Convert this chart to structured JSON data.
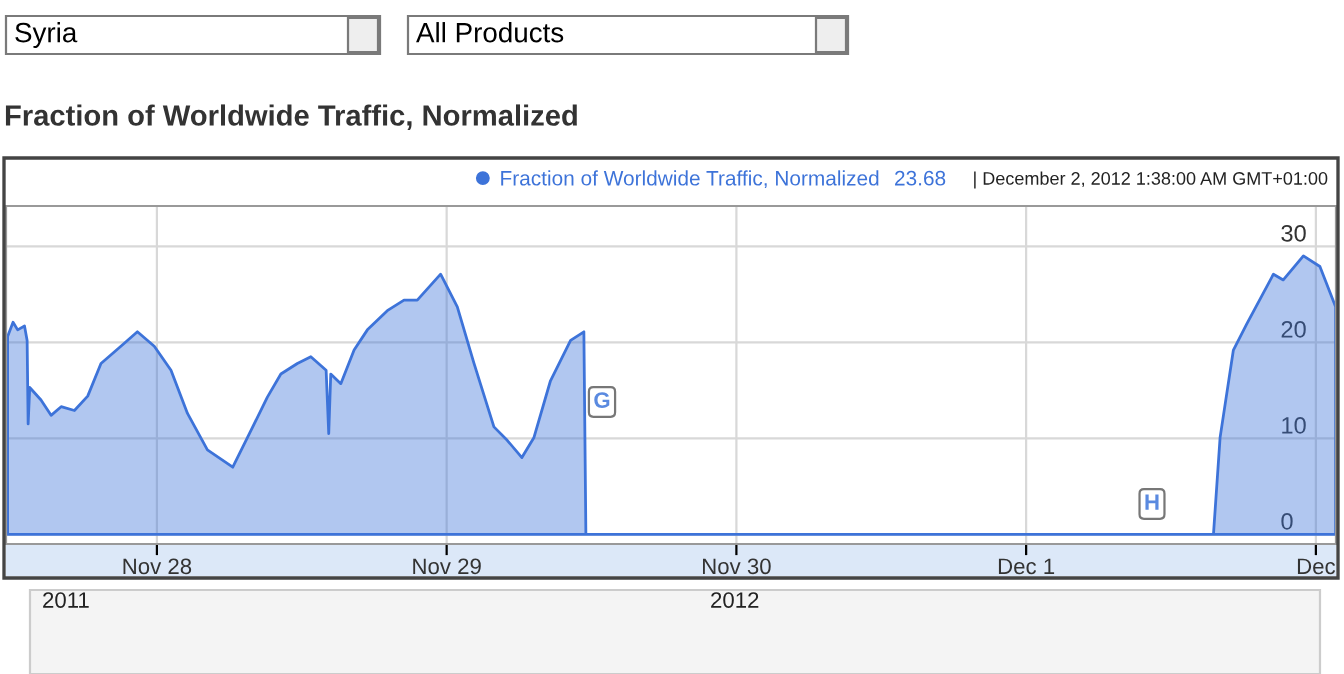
{
  "chart_data": {
    "type": "area",
    "title": "Fraction of Worldwide Traffic, Normalized",
    "series": [
      {
        "name": "Fraction of Worldwide Traffic, Normalized",
        "color": "#3d73d9",
        "x": [
          "2012-11-27T11:38",
          "2012-11-27T12:05",
          "2012-11-27T12:28",
          "2012-11-27T13:02",
          "2012-11-27T13:15",
          "2012-11-27T13:20",
          "2012-11-27T13:28",
          "2012-11-27T14:24",
          "2012-11-27T15:14",
          "2012-11-27T16:04",
          "2012-11-27T17:10",
          "2012-11-27T18:16",
          "2012-11-27T19:22",
          "2012-11-27T21:01",
          "2012-11-27T22:23",
          "2012-11-27T23:47",
          "2012-11-28T01:10",
          "2012-11-28T02:32",
          "2012-11-28T04:11",
          "2012-11-28T06:17",
          "2012-11-28T07:47",
          "2012-11-28T09:09",
          "2012-11-28T10:16",
          "2012-11-28T11:38",
          "2012-11-28T12:45",
          "2012-11-28T14:01",
          "2012-11-28T14:14",
          "2012-11-28T14:24",
          "2012-11-28T15:14",
          "2012-11-28T16:20",
          "2012-11-28T17:26",
          "2012-11-28T19:05",
          "2012-11-28T20:28",
          "2012-11-28T21:34",
          "2012-11-28T23:30",
          "2012-11-29T00:53",
          "2012-11-29T02:16",
          "2012-11-29T03:55",
          "2012-11-29T05:01",
          "2012-11-29T06:14",
          "2012-11-29T07:14",
          "2012-11-29T08:36",
          "2012-11-29T10:16",
          "2012-11-29T11:22",
          "2012-11-29T11:32",
          "2012-12-01T15:31",
          "2012-12-01T16:04",
          "2012-12-01T17:10",
          "2012-12-01T18:16",
          "2012-12-01T20:29",
          "2012-12-01T21:18",
          "2012-12-01T22:58",
          "2012-12-02T00:20",
          "2012-12-02T01:38"
        ],
        "values": [
          20.6,
          22.1,
          21.3,
          21.7,
          20.2,
          11.5,
          15.3,
          14.0,
          12.4,
          13.3,
          12.9,
          14.4,
          17.8,
          19.6,
          21.1,
          19.6,
          17.1,
          12.6,
          8.8,
          7.0,
          10.8,
          14.3,
          16.7,
          17.8,
          18.5,
          17.1,
          10.5,
          16.7,
          15.7,
          19.2,
          21.3,
          23.3,
          24.4,
          24.4,
          27.1,
          23.7,
          17.8,
          11.2,
          9.8,
          8.0,
          10.1,
          16.0,
          20.2,
          21.1,
          0,
          0,
          10.1,
          19.2,
          21.9,
          27.1,
          26.5,
          29.0,
          27.9,
          23.7
        ]
      }
    ],
    "xlim": [
      "2012-11-27T11:30",
      "2012-12-02T01:40"
    ],
    "xticks": [
      {
        "value": "2012-11-28",
        "label": "Nov 28"
      },
      {
        "value": "2012-11-29",
        "label": "Nov 29"
      },
      {
        "value": "2012-11-30",
        "label": "Nov 30"
      },
      {
        "value": "2012-12-01",
        "label": "Dec 1"
      },
      {
        "value": "2012-12-02",
        "label": "Dec"
      }
    ],
    "ylim": [
      -1,
      34.2
    ],
    "yticks": [
      0,
      10,
      20,
      30
    ],
    "grid": true,
    "legend": "top",
    "annotations": [
      "Syria",
      "All Products",
      "23.68",
      "| December 2, 2012 1:38:00 AM GMT+01:00",
      "2011",
      "2012",
      "G",
      "H"
    ]
  }
}
